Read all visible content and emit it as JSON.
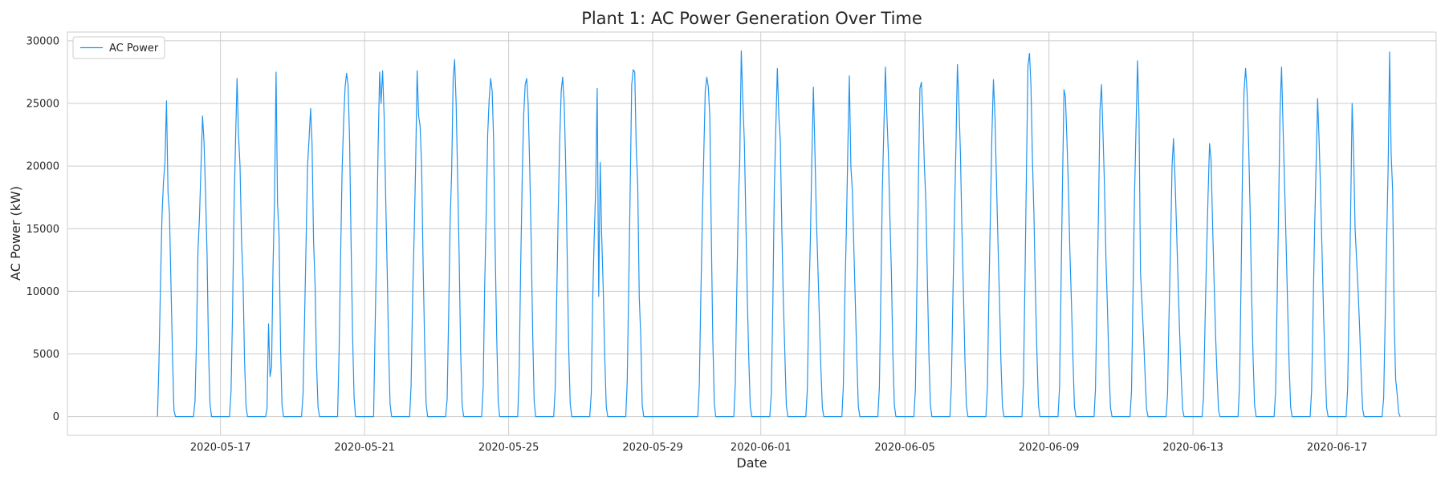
{
  "chart_data": {
    "type": "line",
    "title": "Plant 1: AC Power Generation Over Time",
    "xlabel": "Date",
    "ylabel": "AC Power (kW)",
    "x_type": "date",
    "xlim": [
      "2020-05-12T18:00",
      "2020-06-19T18:00"
    ],
    "ylim": [
      -1500,
      30700
    ],
    "x_ticks": [
      "2020-05-17",
      "2020-05-21",
      "2020-05-25",
      "2020-05-29",
      "2020-06-01",
      "2020-06-05",
      "2020-06-09",
      "2020-06-13",
      "2020-06-17"
    ],
    "y_ticks": [
      0,
      5000,
      10000,
      15000,
      20000,
      25000,
      30000
    ],
    "grid": true,
    "legend_position": "top-left",
    "data_resolution": "one representative daily generation profile per day (start 06:00, end 18:00, hourly values from 07:00 to 17:00); the original chart is sampled every 15 minutes and contains additional short spikes",
    "series": [
      {
        "name": "AC Power",
        "color": "#1f94f0",
        "days": [
          {
            "date": "2020-05-15",
            "hourly": [
              4300,
              10500,
              16000,
              18700,
              20300,
              25200,
              17900,
              16200,
              10500,
              4800,
              500
            ]
          },
          {
            "date": "2020-05-16",
            "hourly": [
              1200,
              6200,
              13200,
              16000,
              20000,
              24000,
              22000,
              18000,
              13000,
              5500,
              1000
            ]
          },
          {
            "date": "2020-05-17",
            "hourly": [
              2000,
              8000,
              16500,
              22000,
              27000,
              22500,
              20000,
              14000,
              11000,
              4500,
              800
            ]
          },
          {
            "date": "2020-05-18",
            "hourly": [
              600,
              7400,
              3200,
              4000,
              12000,
              17500,
              27500,
              17000,
              14500,
              5500,
              900
            ]
          },
          {
            "date": "2020-05-19",
            "hourly": [
              1800,
              7800,
              14000,
              20000,
              22200,
              24600,
              21800,
              14000,
              10500,
              4200,
              700
            ]
          },
          {
            "date": "2020-05-20",
            "hourly": [
              5200,
              12800,
              19500,
              23500,
              26300,
              27400,
              26500,
              22000,
              14000,
              6500,
              1500
            ]
          },
          {
            "date": "2020-05-21",
            "hourly": [
              7200,
              13500,
              21500,
              27500,
              25000,
              27600,
              24000,
              18000,
              12000,
              5500,
              1000
            ]
          },
          {
            "date": "2020-05-22",
            "hourly": [
              2500,
              9500,
              14500,
              20000,
              27600,
              24000,
              23200,
              20000,
              12000,
              6000,
              1000
            ]
          },
          {
            "date": "2020-05-23",
            "hourly": [
              1400,
              8200,
              15500,
              19500,
              27000,
              28500,
              25000,
              19000,
              13000,
              5200,
              900
            ]
          },
          {
            "date": "2020-05-24",
            "hourly": [
              2400,
              10300,
              16000,
              22500,
              25300,
              27000,
              26000,
              22000,
              13500,
              6500,
              1200
            ]
          },
          {
            "date": "2020-05-25",
            "hourly": [
              3500,
              12000,
              19000,
              24000,
              26500,
              27000,
              25000,
              20000,
              14000,
              6500,
              1200
            ]
          },
          {
            "date": "2020-05-26",
            "hourly": [
              2200,
              9500,
              16200,
              22000,
              26000,
              27100,
              25000,
              20000,
              13000,
              5500,
              1000
            ]
          },
          {
            "date": "2020-05-27",
            "hourly": [
              1800,
              9300,
              14300,
              18400,
              26200,
              9600,
              20300,
              14500,
              10200,
              4800,
              800
            ]
          },
          {
            "date": "2020-05-28",
            "hourly": [
              2800,
              10400,
              18500,
              26500,
              27700,
              27500,
              21500,
              18500,
              9500,
              6400,
              900
            ]
          },
          {
            "date": "2020-05-30",
            "hourly": [
              2500,
              9200,
              15500,
              21000,
              26000,
              27100,
              26300,
              24000,
              14800,
              6200,
              1000
            ]
          },
          {
            "date": "2020-05-31",
            "hourly": [
              2600,
              10000,
              17000,
              20500,
              29200,
              25200,
              22000,
              16000,
              9500,
              4500,
              800
            ]
          },
          {
            "date": "2020-06-01",
            "hourly": [
              1800,
              8900,
              18000,
              23000,
              27800,
              24000,
              22000,
              15000,
              9200,
              5200,
              900
            ]
          },
          {
            "date": "2020-06-02",
            "hourly": [
              2200,
              9000,
              14000,
              20500,
              26300,
              21500,
              16000,
              12000,
              8000,
              4000,
              700
            ]
          },
          {
            "date": "2020-06-03",
            "hourly": [
              2400,
              9500,
              15000,
              21300,
              27200,
              20000,
              18000,
              13500,
              9000,
              4500,
              800
            ]
          },
          {
            "date": "2020-06-04",
            "hourly": [
              2300,
              10000,
              18000,
              23000,
              27900,
              24000,
              21000,
              16000,
              11500,
              5000,
              900
            ]
          },
          {
            "date": "2020-06-05",
            "hourly": [
              2200,
              10000,
              18500,
              26200,
              26700,
              24000,
              20000,
              17000,
              11000,
              5000,
              900
            ]
          },
          {
            "date": "2020-06-06",
            "hourly": [
              2500,
              9500,
              16000,
              21500,
              28100,
              25000,
              21000,
              15000,
              10000,
              4500,
              900
            ]
          },
          {
            "date": "2020-06-07",
            "hourly": [
              2400,
              10000,
              16500,
              22500,
              26900,
              24000,
              19000,
              14000,
              9500,
              4500,
              800
            ]
          },
          {
            "date": "2020-06-08",
            "hourly": [
              2800,
              11000,
              19500,
              28000,
              29000,
              26500,
              20500,
              16000,
              10000,
              5000,
              900
            ]
          },
          {
            "date": "2020-06-09",
            "hourly": [
              2300,
              10000,
              18500,
              26100,
              25500,
              22000,
              18000,
              13000,
              9000,
              4500,
              800
            ]
          },
          {
            "date": "2020-06-10",
            "hourly": [
              2200,
              9500,
              16500,
              24500,
              26500,
              22500,
              18500,
              12500,
              8500,
              4000,
              700
            ]
          },
          {
            "date": "2020-06-11",
            "hourly": [
              2000,
              10000,
              17500,
              23000,
              28400,
              24000,
              11500,
              9000,
              6500,
              3500,
              600
            ]
          },
          {
            "date": "2020-06-12",
            "hourly": [
              1800,
              8000,
              13500,
              20000,
              22200,
              19000,
              15000,
              11000,
              7000,
              3500,
              600
            ]
          },
          {
            "date": "2020-06-13",
            "hourly": [
              1500,
              7500,
              13000,
              17500,
              21800,
              20500,
              15500,
              11000,
              6500,
              3200,
              500
            ]
          },
          {
            "date": "2020-06-14",
            "hourly": [
              2600,
              11000,
              20000,
              26000,
              27800,
              26000,
              22000,
              16500,
              10000,
              4800,
              900
            ]
          },
          {
            "date": "2020-06-15",
            "hourly": [
              2000,
              9000,
              16500,
              24500,
              27900,
              23000,
              18500,
              14000,
              9000,
              4200,
              800
            ]
          },
          {
            "date": "2020-06-16",
            "hourly": [
              2000,
              8500,
              15000,
              20000,
              25400,
              22000,
              18000,
              13000,
              8000,
              4000,
              700
            ]
          },
          {
            "date": "2020-06-17",
            "hourly": [
              2200,
              9000,
              16000,
              25000,
              21000,
              15000,
              12500,
              10000,
              7000,
              3500,
              600
            ]
          },
          {
            "date": "2020-06-18",
            "hourly": [
              1500,
              7500,
              14000,
              20000,
              29100,
              21000,
              18000,
              7800,
              3000,
              1800,
              300
            ]
          }
        ]
      }
    ]
  }
}
